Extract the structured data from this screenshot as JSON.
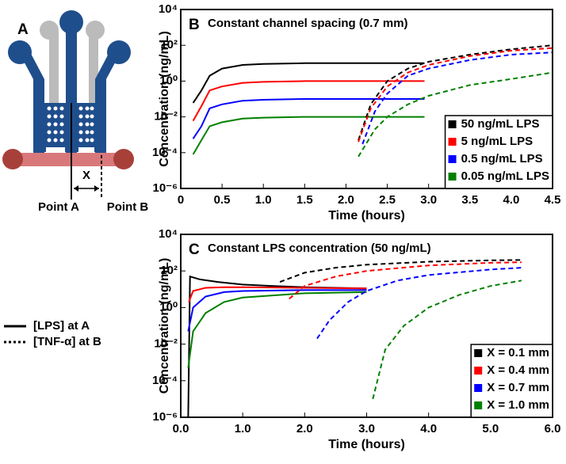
{
  "panel_a": {
    "label": "A",
    "distance_label": "X",
    "point_a": "Point A",
    "point_b": "Point B"
  },
  "line_legend": [
    {
      "label": "[LPS] at A",
      "style": "solid"
    },
    {
      "label": "[TNF-α] at B",
      "style": "dotted"
    }
  ],
  "chart_data": [
    {
      "type": "line",
      "panel_label": "B",
      "title": "Constant channel spacing (0.7 mm)",
      "x_label": "Time (hours)",
      "y_label": "Concentration (ng/mL)",
      "log_y": true,
      "legend": "lower right",
      "xlim": [
        0,
        4.5
      ],
      "ylim": [
        1e-06,
        10000
      ],
      "xticks": [
        0,
        0.5,
        {
          "value": 1,
          "label": "1.0"
        },
        1.5,
        {
          "value": 2,
          "label": "2.0"
        },
        2.5,
        {
          "value": 3,
          "label": "3.0"
        },
        3.5,
        {
          "value": 4,
          "label": "4.0"
        },
        4.5
      ],
      "yticks": [
        {
          "value": 1e-06,
          "label": "10⁻⁶"
        },
        {
          "value": 0.0001,
          "label": "10⁻⁴"
        },
        {
          "value": 0.01,
          "label": "10⁻²"
        },
        {
          "value": 1,
          "label": "10⁰"
        },
        {
          "value": 100,
          "label": "10²"
        },
        {
          "value": 10000,
          "label": "10⁴"
        }
      ],
      "series": [
        {
          "name": "50 ng/mL LPS",
          "color": "#000000",
          "line_style": "solid",
          "x": [
            0.15,
            0.25,
            0.35,
            0.5,
            0.75,
            1.0,
            1.5,
            2.0,
            2.5,
            2.95
          ],
          "values": [
            0.06,
            0.3,
            2,
            5,
            8,
            9,
            10,
            10,
            10,
            10
          ]
        },
        {
          "name": "5 ng/mL LPS",
          "color": "#ff0000",
          "line_style": "solid",
          "x": [
            0.15,
            0.25,
            0.35,
            0.5,
            0.75,
            1.0,
            1.5,
            2.0,
            2.5,
            2.95
          ],
          "values": [
            0.006,
            0.04,
            0.3,
            0.5,
            0.8,
            0.9,
            1,
            1,
            1,
            1
          ]
        },
        {
          "name": "0.5 ng/mL LPS",
          "color": "#0000ff",
          "line_style": "solid",
          "x": [
            0.15,
            0.25,
            0.35,
            0.5,
            0.75,
            1.0,
            1.5,
            2.0,
            2.5,
            2.95
          ],
          "values": [
            0.0006,
            0.003,
            0.03,
            0.05,
            0.08,
            0.09,
            0.1,
            0.1,
            0.1,
            0.1
          ]
        },
        {
          "name": "0.05 ng/mL LPS",
          "color": "#008000",
          "line_style": "solid",
          "x": [
            0.15,
            0.25,
            0.35,
            0.5,
            0.75,
            1.0,
            1.5,
            2.0,
            2.5,
            2.95
          ],
          "values": [
            8e-05,
            0.0005,
            0.003,
            0.005,
            0.008,
            0.009,
            0.01,
            0.01,
            0.01,
            0.01
          ]
        },
        {
          "color": "#000000",
          "line_style": "dashed",
          "x": [
            2.15,
            2.3,
            2.5,
            2.75,
            3.0,
            3.5,
            4.0,
            4.5
          ],
          "values": [
            0.0005,
            0.05,
            1,
            5,
            12,
            30,
            60,
            100
          ]
        },
        {
          "color": "#ff0000",
          "line_style": "dashed",
          "x": [
            2.15,
            2.3,
            2.5,
            2.75,
            3.0,
            3.5,
            4.0,
            4.5
          ],
          "values": [
            0.0004,
            0.03,
            0.5,
            3,
            8,
            25,
            50,
            70
          ]
        },
        {
          "color": "#0000ff",
          "line_style": "dashed",
          "x": [
            2.2,
            2.35,
            2.5,
            2.75,
            3.0,
            3.5,
            4.0,
            4.5
          ],
          "values": [
            0.0003,
            0.02,
            0.2,
            2,
            5,
            15,
            30,
            40
          ]
        },
        {
          "color": "#008000",
          "line_style": "dashed",
          "x": [
            2.15,
            2.35,
            2.5,
            2.75,
            3.0,
            3.5,
            4.0,
            4.5
          ],
          "values": [
            6e-05,
            0.002,
            0.01,
            0.05,
            0.15,
            0.6,
            1.3,
            3
          ]
        }
      ]
    },
    {
      "type": "line",
      "panel_label": "C",
      "title": "Constant LPS concentration (50 ng/mL)",
      "x_label": "Time (hours)",
      "y_label": "Concentration (ng/mL)",
      "log_y": true,
      "legend": "lower right",
      "xlim": [
        0,
        6
      ],
      "ylim": [
        1e-06,
        10000
      ],
      "xticks": [
        {
          "value": 0,
          "label": "0.0"
        },
        {
          "value": 1,
          "label": "1.0"
        },
        {
          "value": 2,
          "label": "2.0"
        },
        {
          "value": 3,
          "label": "3.0"
        },
        {
          "value": 4,
          "label": "4.0"
        },
        {
          "value": 5,
          "label": "5.0"
        },
        {
          "value": 6,
          "label": "6.0"
        }
      ],
      "yticks": [
        {
          "value": 1e-06,
          "label": "10⁻⁶"
        },
        {
          "value": 0.0001,
          "label": "10⁻⁴"
        },
        {
          "value": 0.01,
          "label": "10⁻²"
        },
        {
          "value": 1,
          "label": "10⁰"
        },
        {
          "value": 100,
          "label": "10²"
        },
        {
          "value": 10000,
          "label": "10⁴"
        }
      ],
      "series": [
        {
          "name": "X = 0.1 mm",
          "color": "#000000",
          "line_style": "solid",
          "x": [
            0.12,
            0.15,
            0.3,
            0.6,
            1.0,
            1.5,
            2.0,
            3.0
          ],
          "values": [
            1e-06,
            50,
            35,
            25,
            18,
            15,
            13,
            11
          ]
        },
        {
          "name": "X = 0.4 mm",
          "color": "#ff0000",
          "line_style": "solid",
          "x": [
            0.13,
            0.2,
            0.4,
            0.7,
            1.0,
            2.0,
            3.0
          ],
          "values": [
            2,
            8,
            12,
            13,
            13,
            12,
            11
          ]
        },
        {
          "name": "X = 0.7 mm",
          "color": "#0000ff",
          "line_style": "solid",
          "x": [
            0.12,
            0.2,
            0.4,
            0.7,
            1.0,
            2.0,
            3.0
          ],
          "values": [
            0.05,
            1,
            4,
            7,
            8,
            9,
            9
          ]
        },
        {
          "name": "X = 1.0 mm",
          "color": "#008000",
          "line_style": "solid",
          "x": [
            0.12,
            0.2,
            0.4,
            0.7,
            1.0,
            2.0,
            3.0
          ],
          "values": [
            0.0005,
            0.05,
            0.5,
            2,
            3.5,
            6,
            7
          ]
        },
        {
          "color": "#000000",
          "line_style": "dashed",
          "x": [
            1.6,
            2.0,
            2.5,
            3.0,
            4.0,
            5.0,
            5.5
          ],
          "values": [
            25,
            80,
            150,
            220,
            320,
            380,
            400
          ]
        },
        {
          "color": "#ff0000",
          "line_style": "dashed",
          "x": [
            1.75,
            2.0,
            2.5,
            3.0,
            4.0,
            5.0,
            5.5
          ],
          "values": [
            3,
            15,
            50,
            100,
            200,
            280,
            300
          ]
        },
        {
          "color": "#0000ff",
          "line_style": "dashed",
          "x": [
            2.2,
            2.4,
            2.7,
            3.0,
            3.5,
            4.0,
            5.0,
            5.5
          ],
          "values": [
            0.02,
            0.2,
            2,
            8,
            30,
            60,
            120,
            150
          ]
        },
        {
          "color": "#008000",
          "line_style": "dashed",
          "x": [
            3.1,
            3.3,
            3.6,
            4.0,
            4.5,
            5.0,
            5.5
          ],
          "values": [
            1e-05,
            0.005,
            0.1,
            1,
            5,
            15,
            30
          ]
        }
      ]
    }
  ]
}
